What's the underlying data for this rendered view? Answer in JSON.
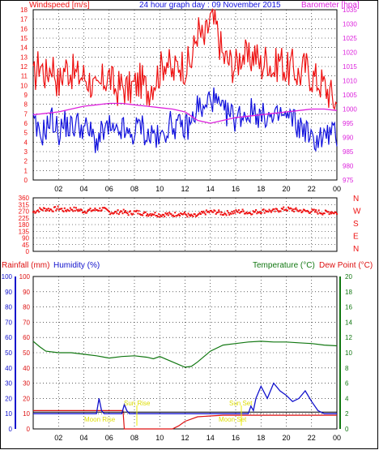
{
  "page": {
    "title": "24 hour graph day : 09 November 2015"
  },
  "colors": {
    "wind": "#ee1111",
    "gust": "#ee1111",
    "avg": "#1111dd",
    "baro": "#dd22dd",
    "dir": "#ee1111",
    "rain_axis": "#dd1111",
    "hum_axis": "#1111cc",
    "temp": "#117711",
    "dew_axis": "#dd1111",
    "sunmoon": "#eeee00",
    "grid": "#000000"
  },
  "chart_data": [
    {
      "id": "wind",
      "type": "line",
      "title": "24 hour graph day : 09 November 2015",
      "ylabel": "Windspeed [m/s]",
      "ylabel_right": "Barometer [hpa]",
      "ylim": [
        0,
        18
      ],
      "yticks": [
        "0",
        "1",
        "2",
        "3",
        "4",
        "5",
        "6",
        "7",
        "8",
        "9",
        "10",
        "11",
        "12",
        "13",
        "14",
        "15",
        "16",
        "17",
        "18"
      ],
      "ylim_right": [
        975,
        1035
      ],
      "yticks_right": [
        "975",
        "980",
        "985",
        "990",
        "995",
        "1000",
        "1005",
        "1010",
        "1015",
        "1020",
        "1025",
        "1030",
        "1035"
      ],
      "xlim": [
        0,
        24
      ],
      "xticks": [
        "02",
        "04",
        "06",
        "08",
        "10",
        "12",
        "14",
        "16",
        "18",
        "20",
        "22",
        "00"
      ],
      "series": [
        {
          "key": "gust",
          "x": [
            0,
            0.5,
            1,
            1.5,
            2,
            2.5,
            3,
            3.5,
            4,
            4.5,
            5,
            5.5,
            6,
            6.5,
            7,
            7.5,
            8,
            8.5,
            9,
            9.5,
            10,
            10.5,
            11,
            11.5,
            12,
            12.5,
            13,
            13.5,
            14,
            14.5,
            15,
            15.5,
            16,
            16.5,
            17,
            17.5,
            18,
            18.5,
            19,
            19.5,
            20,
            20.5,
            21,
            21.5,
            22,
            22.5,
            23,
            23.5,
            24
          ],
          "values": [
            10.5,
            12.5,
            11,
            12.5,
            10,
            12,
            11.5,
            11,
            11,
            10.5,
            9,
            10.5,
            11,
            9.5,
            10,
            9.5,
            10,
            10.5,
            9.5,
            10.5,
            11.5,
            13,
            11,
            12.5,
            12,
            12.5,
            16,
            14.5,
            17,
            16,
            13,
            12.5,
            12,
            13.5,
            12.5,
            13.5,
            12,
            13,
            11.5,
            13,
            11.5,
            12,
            11,
            12,
            11,
            10.5,
            10,
            9,
            8
          ]
        },
        {
          "key": "avg",
          "x": [
            0,
            0.5,
            1,
            1.5,
            2,
            2.5,
            3,
            3.5,
            4,
            4.5,
            5,
            5.5,
            6,
            6.5,
            7,
            7.5,
            8,
            8.5,
            9,
            9.5,
            10,
            10.5,
            11,
            11.5,
            12,
            12.5,
            13,
            13.5,
            14,
            14.5,
            15,
            15.5,
            16,
            16.5,
            17,
            17.5,
            18,
            18.5,
            19,
            19.5,
            20,
            20.5,
            21,
            21.5,
            22,
            22.5,
            23,
            23.5,
            24
          ],
          "values": [
            6,
            4.5,
            5.5,
            6.5,
            5,
            6,
            5.5,
            6,
            5.5,
            5,
            4,
            5,
            5.5,
            4.5,
            5.5,
            4.5,
            5,
            6,
            4.5,
            5,
            4,
            5.5,
            6,
            5.5,
            5.5,
            6,
            8,
            7,
            9,
            8,
            7,
            7,
            6.5,
            7,
            7,
            7.5,
            6.5,
            7,
            6,
            7,
            6.5,
            6.5,
            5.5,
            5.5,
            4,
            4.5,
            4.5,
            5,
            4.5
          ]
        },
        {
          "key": "baro",
          "x": [
            0,
            1,
            2,
            3,
            4,
            5,
            6,
            7,
            8,
            9,
            10,
            11,
            12,
            13,
            14,
            15,
            16,
            17,
            18,
            19,
            20,
            21,
            22,
            23,
            24
          ],
          "values": [
            998,
            998.5,
            999,
            1000,
            1001,
            1001.5,
            1002,
            1002,
            1001.5,
            1001,
            1000.5,
            1000,
            999,
            996,
            995,
            996,
            997,
            997.5,
            998,
            998.5,
            999,
            999.5,
            1000,
            1000,
            999.5
          ]
        }
      ]
    },
    {
      "id": "direction",
      "type": "scatter",
      "ylim": [
        0,
        360
      ],
      "yticks": [
        "0",
        "45",
        "90",
        "135",
        "180",
        "225",
        "270",
        "315",
        "360"
      ],
      "right_letters": [
        "N",
        "W",
        "S",
        "E",
        "N"
      ],
      "xlim": [
        0,
        24
      ],
      "x": [
        0,
        0.5,
        1,
        1.5,
        2,
        2.5,
        3,
        3.5,
        4,
        4.5,
        5,
        5.5,
        6,
        6.5,
        7,
        7.5,
        8,
        8.5,
        9,
        9.5,
        10,
        10.5,
        11,
        11.5,
        12,
        12.5,
        13,
        13.5,
        14,
        14.5,
        15,
        15.5,
        16,
        16.5,
        17,
        17.5,
        18,
        18.5,
        19,
        19.5,
        20,
        20.5,
        21,
        21.5,
        22,
        22.5,
        23,
        23.5,
        24
      ],
      "values": [
        265,
        280,
        285,
        280,
        290,
        275,
        285,
        280,
        270,
        275,
        280,
        285,
        265,
        260,
        270,
        255,
        265,
        260,
        250,
        255,
        245,
        250,
        245,
        255,
        250,
        235,
        240,
        260,
        265,
        265,
        255,
        260,
        265,
        270,
        260,
        265,
        270,
        275,
        270,
        280,
        285,
        280,
        275,
        270,
        270,
        265,
        260,
        265,
        260
      ]
    },
    {
      "id": "rain_hum_temp",
      "type": "line",
      "ylabel_left_1": "Rainfall (mm)",
      "ylabel_left_2": "Humidity (%)",
      "ylabel_right_1": "Temperature (°C)",
      "ylabel_right_2": "Dew Point (°C)",
      "ylim": [
        0,
        100
      ],
      "yticks": [
        "0",
        "10",
        "20",
        "30",
        "40",
        "50",
        "60",
        "70",
        "80",
        "90",
        "100"
      ],
      "ylim_right": [
        0,
        20
      ],
      "yticks_right": [
        "0",
        "2",
        "4",
        "6",
        "8",
        "10",
        "12",
        "14",
        "16",
        "18",
        "20"
      ],
      "xlim": [
        0,
        24
      ],
      "xticks": [
        "02",
        "04",
        "06",
        "08",
        "10",
        "12",
        "14",
        "16",
        "18",
        "20",
        "22",
        "00"
      ],
      "annotations": [
        "Moon Rise",
        "Sun Rise",
        "Moon Set",
        "Sun Set"
      ],
      "series": [
        {
          "key": "temp",
          "x": [
            0,
            0.5,
            1,
            2,
            3,
            4,
            5,
            6,
            7,
            8,
            9,
            9.5,
            10,
            11,
            12,
            12.5,
            13,
            14,
            15,
            16,
            17,
            18,
            19,
            20,
            21,
            22,
            23,
            24
          ],
          "values": [
            11.5,
            10.8,
            10.2,
            10,
            10,
            9.8,
            9.6,
            9.3,
            9.5,
            9.6,
            9.4,
            9.2,
            9.5,
            8.8,
            8.1,
            8.2,
            8.8,
            10.2,
            11,
            11.2,
            11.4,
            11.5,
            11.4,
            11.4,
            11.3,
            11.2,
            11,
            10.9
          ]
        },
        {
          "key": "rain",
          "x": [
            0,
            7.1,
            7.2,
            10,
            11,
            11.5,
            12,
            13,
            14,
            15,
            16,
            18,
            20,
            22,
            24
          ],
          "values": [
            12,
            12,
            0,
            0,
            0,
            2,
            5,
            8,
            8.5,
            9,
            9,
            9,
            9,
            9,
            9
          ]
        },
        {
          "key": "dewlevel",
          "x": [
            0,
            24
          ],
          "values": [
            2.2,
            2.2
          ]
        },
        {
          "key": "humidity",
          "x": [
            0,
            4,
            5,
            5.2,
            5.4,
            5.6,
            6,
            7,
            7.2,
            7.4,
            7.6,
            8,
            9,
            10,
            12,
            14,
            16,
            17,
            17.2,
            17.4,
            17.6,
            18,
            18.5,
            19,
            19.5,
            20,
            20.5,
            21,
            21.5,
            22,
            22.5,
            23,
            24
          ],
          "values": [
            10,
            10,
            10,
            20,
            12,
            10,
            10,
            10,
            16,
            12,
            10,
            10,
            10,
            10,
            10,
            10,
            10,
            10,
            15,
            12,
            20,
            28,
            20,
            30,
            25,
            22,
            18,
            20,
            25,
            18,
            12,
            10,
            10
          ]
        }
      ]
    }
  ]
}
